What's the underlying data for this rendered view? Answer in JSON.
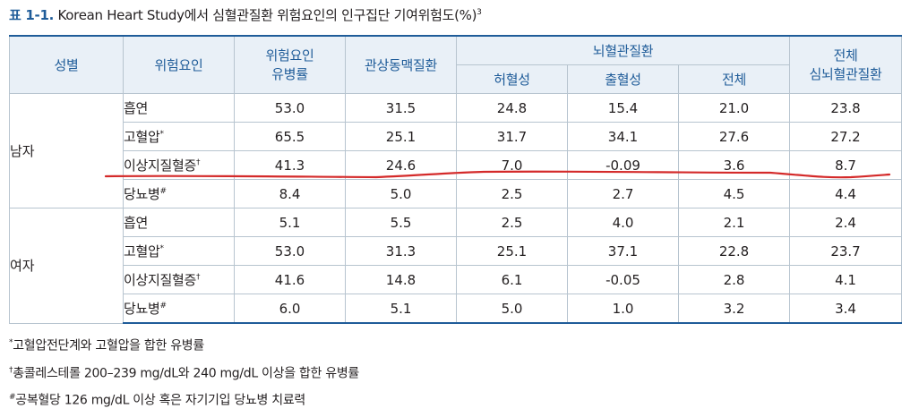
{
  "caption": {
    "label": "표 1-1.",
    "text": "Korean Heart Study에서 심혈관질환 위험요인의 인구집단 기여위험도(%)",
    "ref": "3"
  },
  "table": {
    "headers": {
      "sex": "성별",
      "factor": "위험요인",
      "prevalence_line1": "위험요인",
      "prevalence_line2": "유병률",
      "chd": "관상동맥질환",
      "stroke_group": "뇌혈관질환",
      "ischemic": "허혈성",
      "hemorrhagic": "출혈성",
      "stroke_total": "전체",
      "cvd_line1": "전체",
      "cvd_line2": "심뇌혈관질환"
    },
    "groups": [
      {
        "sex": "남자",
        "rows": [
          {
            "factor": "흡연",
            "mark": "",
            "values": [
              "53.0",
              "31.5",
              "24.8",
              "15.4",
              "21.0",
              "23.8"
            ]
          },
          {
            "factor": "고혈압",
            "mark": "*",
            "values": [
              "65.5",
              "25.1",
              "31.7",
              "34.1",
              "27.6",
              "27.2"
            ]
          },
          {
            "factor": "이상지질혈증",
            "mark": "†",
            "values": [
              "41.3",
              "24.6",
              "7.0",
              "-0.09",
              "3.6",
              "8.7"
            ]
          },
          {
            "factor": "당뇨병",
            "mark": "#",
            "values": [
              "8.4",
              "5.0",
              "2.5",
              "2.7",
              "4.5",
              "4.4"
            ]
          }
        ]
      },
      {
        "sex": "여자",
        "rows": [
          {
            "factor": "흡연",
            "mark": "",
            "values": [
              "5.1",
              "5.5",
              "2.5",
              "4.0",
              "2.1",
              "2.4"
            ]
          },
          {
            "factor": "고혈압",
            "mark": "*",
            "values": [
              "53.0",
              "31.3",
              "25.1",
              "37.1",
              "22.8",
              "23.7"
            ]
          },
          {
            "factor": "이상지질혈증",
            "mark": "†",
            "values": [
              "41.6",
              "14.8",
              "6.1",
              "-0.05",
              "2.8",
              "4.1"
            ]
          },
          {
            "factor": "당뇨병",
            "mark": "#",
            "values": [
              "6.0",
              "5.1",
              "5.0",
              "1.0",
              "3.2",
              "3.4"
            ]
          }
        ]
      }
    ]
  },
  "notes": [
    {
      "mark": "*",
      "text": "고혈압전단계와 고혈압을 합한 유병률"
    },
    {
      "mark": "†",
      "text": "총콜레스테롤 200–239 mg/dL와 240 mg/dL 이상을 합한 유병률"
    },
    {
      "mark": "#",
      "text": "공복혈당 126 mg/dL 이상 혹은 자기기입 당뇨병 치료력"
    }
  ],
  "annotation": {
    "color": "#d42a2a",
    "shape": "red-underline-stroke"
  }
}
